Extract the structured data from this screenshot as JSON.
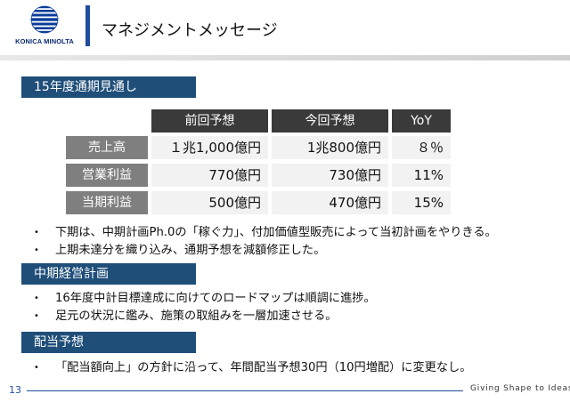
{
  "header": {
    "logo_text": "KONICA MINOLTA",
    "title": "マネジメントメッセージ"
  },
  "sections": [
    {
      "label": "15年度通期見通し"
    },
    {
      "label": "中期経営計画"
    },
    {
      "label": "配当予想"
    }
  ],
  "forecast_table": {
    "columns": [
      "前回予想",
      "今回予想",
      "YoY"
    ],
    "rows": [
      {
        "label": "売上高",
        "values": [
          "１兆1,000億円",
          "1兆800億円",
          "８％"
        ]
      },
      {
        "label": "営業利益",
        "values": [
          "770億円",
          "730億円",
          "11%"
        ]
      },
      {
        "label": "当期利益",
        "values": [
          "500億円",
          "470億円",
          "15%"
        ]
      }
    ]
  },
  "bullets": {
    "forecast": [
      "下期は、中期計画Ph.0の「稼ぐ力」、付加価値型販売によって当初計画をやりきる。",
      "上期未達分を織り込み、通期予想を減額修正した。"
    ],
    "midterm": [
      "16年度中計目標達成に向けてのロードマップは順調に進捗。",
      "足元の状況に鑑み、施策の取組みを一層加速させる。"
    ],
    "dividend": [
      "「配当額向上」の方針に沿って、年間配当予想30円（10円増配）に変更なし。"
    ]
  },
  "footer": {
    "page_number": "13",
    "tagline": "Giving Shape to Ideas"
  },
  "colors": {
    "section_bg": "#1f4e79",
    "table_header_bg": "#3a3a3a",
    "row_label_bg": "#7f7f7f",
    "value_bg": "#f2f2f2",
    "brand_blue": "#1f4e9e"
  }
}
